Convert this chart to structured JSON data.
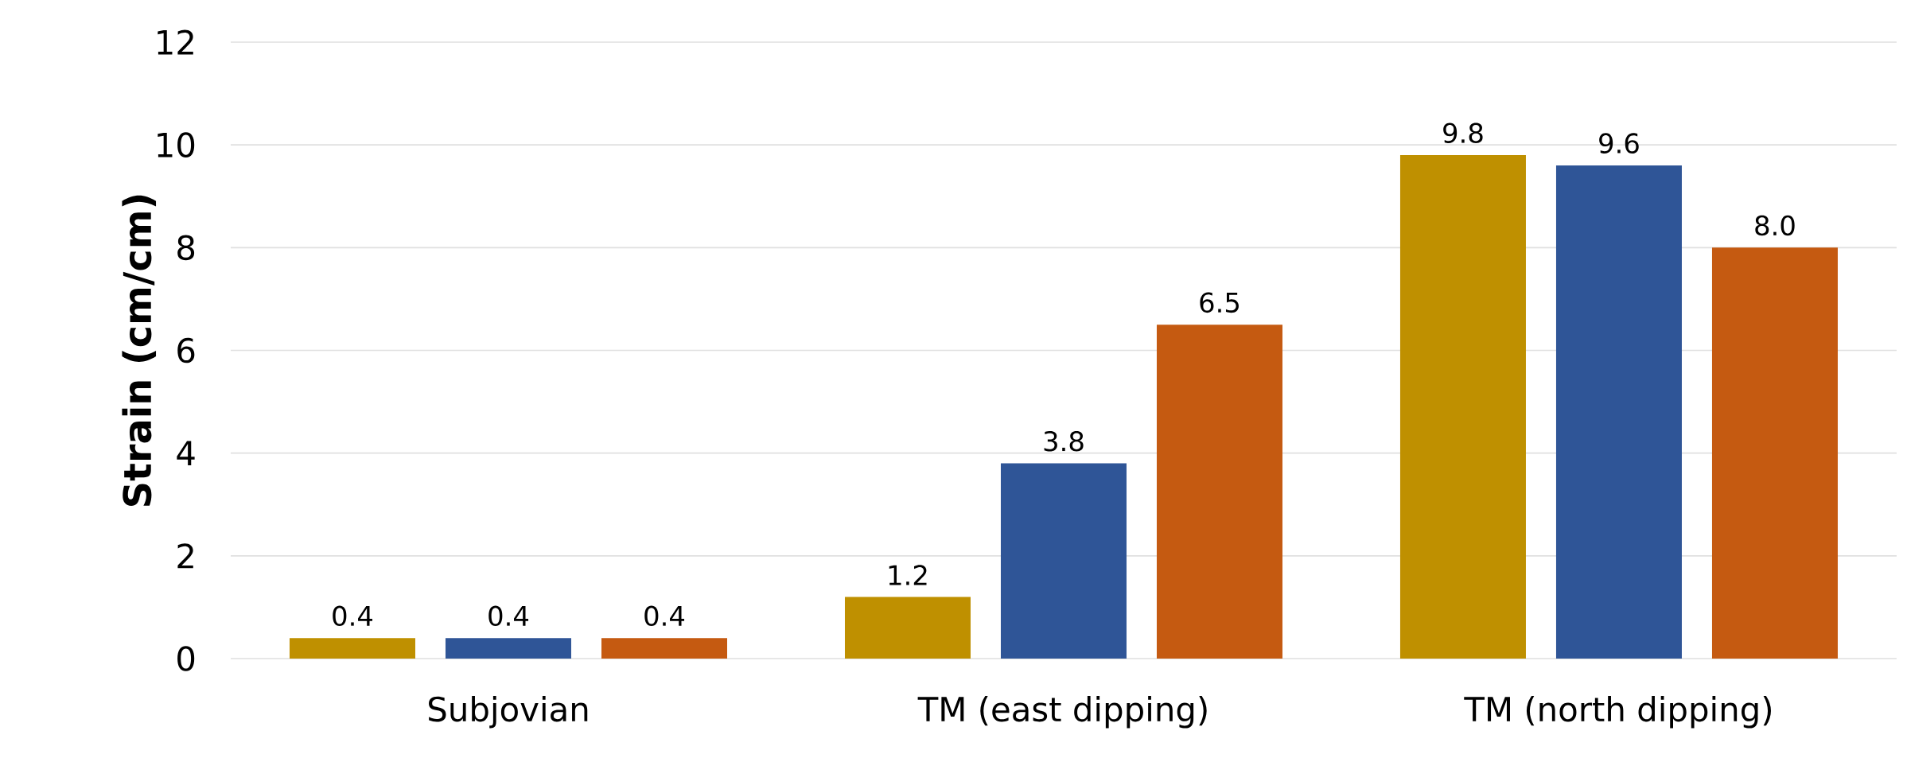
{
  "chart_data": {
    "type": "bar",
    "ylabel": "Strain (cm/cm)",
    "categories": [
      "Subjovian",
      "TM (east dipping)",
      "TM (north dipping)"
    ],
    "series": [
      {
        "color": "#bf9000",
        "values": [
          0.4,
          1.2,
          9.8
        ],
        "value_labels": [
          "0.4",
          "1.2",
          "9.8"
        ]
      },
      {
        "color": "#2f5597",
        "values": [
          0.4,
          3.8,
          9.6
        ],
        "value_labels": [
          "0.4",
          "3.8",
          "9.6"
        ]
      },
      {
        "color": "#c55a11",
        "values": [
          0.4,
          6.5,
          8.0
        ],
        "value_labels": [
          "0.4",
          "6.5",
          "8.0"
        ]
      }
    ],
    "ylim": [
      0,
      12
    ],
    "yticks": [
      0,
      2,
      4,
      6,
      8,
      10,
      12
    ],
    "grid": "y"
  }
}
